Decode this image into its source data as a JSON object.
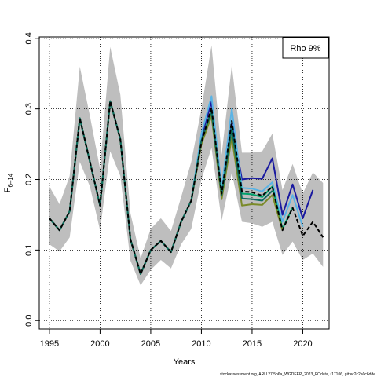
{
  "chart_data": {
    "type": "line",
    "title": "",
    "xlabel": "Years",
    "ylabel_main": "F",
    "ylabel_sub": "6–14",
    "xlim": [
      1994,
      2022.6
    ],
    "ylim": [
      -0.012,
      0.402
    ],
    "x_ticks": [
      1995,
      2000,
      2005,
      2010,
      2015,
      2020
    ],
    "y_ticks": [
      0.0,
      0.1,
      0.2,
      0.3,
      0.4
    ],
    "x_tick_labels": [
      "1995",
      "2000",
      "2005",
      "2010",
      "2015",
      "2020"
    ],
    "y_tick_labels": [
      "0.0",
      "0.1",
      "0.2",
      "0.3",
      "0.4"
    ],
    "grid": true,
    "legend": {
      "placement": "top-right",
      "label": "Rho 9%"
    },
    "footer_text": "stockassessment.org, ARU.27.5b6a_WGDEEP_2023_FOdata, r17106, git:ec2c2a0c6dde",
    "confidence_band": {
      "color": "#bebebe",
      "x": [
        1995,
        1996,
        1997,
        1998,
        1999,
        2000,
        2001,
        2002,
        2003,
        2004,
        2005,
        2006,
        2007,
        2008,
        2009,
        2010,
        2011,
        2012,
        2013,
        2014,
        2015,
        2016,
        2017,
        2018,
        2019,
        2020,
        2021,
        2022
      ],
      "lower": [
        0.108,
        0.098,
        0.118,
        0.225,
        0.19,
        0.128,
        0.24,
        0.205,
        0.085,
        0.05,
        0.072,
        0.086,
        0.074,
        0.108,
        0.13,
        0.2,
        0.245,
        0.142,
        0.21,
        0.14,
        0.138,
        0.133,
        0.14,
        0.093,
        0.112,
        0.086,
        0.095,
        0.076
      ],
      "upper": [
        0.19,
        0.165,
        0.205,
        0.36,
        0.29,
        0.215,
        0.388,
        0.32,
        0.152,
        0.088,
        0.13,
        0.145,
        0.127,
        0.175,
        0.225,
        0.3,
        0.39,
        0.235,
        0.362,
        0.238,
        0.238,
        0.24,
        0.265,
        0.185,
        0.222,
        0.18,
        0.21,
        0.195
      ]
    },
    "series": [
      {
        "color": "#1a1aa0",
        "dash": false,
        "x": [
          1995,
          1996,
          1997,
          1998,
          1999,
          2000,
          2001,
          2002,
          2003,
          2004,
          2005,
          2006,
          2007,
          2008,
          2009,
          2010,
          2011,
          2012,
          2013,
          2014,
          2015,
          2016,
          2017,
          2018,
          2019,
          2020,
          2021
        ],
        "values": [
          0.145,
          0.128,
          0.155,
          0.287,
          0.225,
          0.163,
          0.311,
          0.257,
          0.115,
          0.066,
          0.1,
          0.113,
          0.097,
          0.14,
          0.17,
          0.26,
          0.31,
          0.185,
          0.28,
          0.2,
          0.202,
          0.201,
          0.23,
          0.15,
          0.193,
          0.145,
          0.185
        ]
      },
      {
        "color": "#5ab4e6",
        "dash": false,
        "x": [
          1995,
          1996,
          1997,
          1998,
          1999,
          2000,
          2001,
          2002,
          2003,
          2004,
          2005,
          2006,
          2007,
          2008,
          2009,
          2010,
          2011,
          2012,
          2013,
          2014,
          2015,
          2016,
          2017,
          2018,
          2019,
          2020
        ],
        "values": [
          0.145,
          0.128,
          0.155,
          0.287,
          0.225,
          0.163,
          0.311,
          0.257,
          0.115,
          0.066,
          0.1,
          0.113,
          0.097,
          0.14,
          0.17,
          0.265,
          0.318,
          0.188,
          0.3,
          0.188,
          0.187,
          0.183,
          0.196,
          0.14,
          0.178,
          0.133
        ]
      },
      {
        "color": "#00a36c",
        "dash": false,
        "x": [
          1995,
          1996,
          1997,
          1998,
          1999,
          2000,
          2001,
          2002,
          2003,
          2004,
          2005,
          2006,
          2007,
          2008,
          2009,
          2010,
          2011,
          2012,
          2013,
          2014,
          2015,
          2016,
          2017,
          2018,
          2019
        ],
        "values": [
          0.145,
          0.128,
          0.155,
          0.287,
          0.225,
          0.163,
          0.311,
          0.257,
          0.115,
          0.066,
          0.1,
          0.113,
          0.097,
          0.14,
          0.17,
          0.255,
          0.298,
          0.18,
          0.275,
          0.18,
          0.179,
          0.175,
          0.19,
          0.13,
          0.16
        ]
      },
      {
        "color": "#7a8a28",
        "dash": false,
        "x": [
          1995,
          1996,
          1997,
          1998,
          1999,
          2000,
          2001,
          2002,
          2003,
          2004,
          2005,
          2006,
          2007,
          2008,
          2009,
          2010,
          2011,
          2012,
          2013,
          2014,
          2015,
          2016,
          2017,
          2018
        ],
        "values": [
          0.145,
          0.128,
          0.155,
          0.287,
          0.225,
          0.163,
          0.311,
          0.257,
          0.115,
          0.066,
          0.1,
          0.113,
          0.097,
          0.14,
          0.17,
          0.25,
          0.29,
          0.172,
          0.26,
          0.163,
          0.165,
          0.164,
          0.178,
          0.128
        ]
      },
      {
        "color": "#0d6b5e",
        "dash": false,
        "x": [
          1995,
          1996,
          1997,
          1998,
          1999,
          2000,
          2001,
          2002,
          2003,
          2004,
          2005,
          2006,
          2007,
          2008,
          2009,
          2010,
          2011,
          2012,
          2013,
          2014,
          2015,
          2016,
          2017
        ],
        "values": [
          0.145,
          0.128,
          0.155,
          0.287,
          0.225,
          0.163,
          0.311,
          0.257,
          0.115,
          0.066,
          0.1,
          0.113,
          0.097,
          0.14,
          0.17,
          0.255,
          0.296,
          0.178,
          0.272,
          0.173,
          0.172,
          0.17,
          0.184
        ]
      },
      {
        "color": "#000000",
        "dash": true,
        "x": [
          1995,
          1996,
          1997,
          1998,
          1999,
          2000,
          2001,
          2002,
          2003,
          2004,
          2005,
          2006,
          2007,
          2008,
          2009,
          2010,
          2011,
          2012,
          2013,
          2014,
          2015,
          2016,
          2017,
          2018,
          2019,
          2020,
          2021,
          2022
        ],
        "values": [
          0.145,
          0.128,
          0.155,
          0.287,
          0.225,
          0.163,
          0.311,
          0.257,
          0.115,
          0.066,
          0.1,
          0.113,
          0.097,
          0.14,
          0.17,
          0.252,
          0.302,
          0.18,
          0.283,
          0.183,
          0.182,
          0.177,
          0.19,
          0.128,
          0.16,
          0.12,
          0.14,
          0.118
        ]
      }
    ]
  }
}
